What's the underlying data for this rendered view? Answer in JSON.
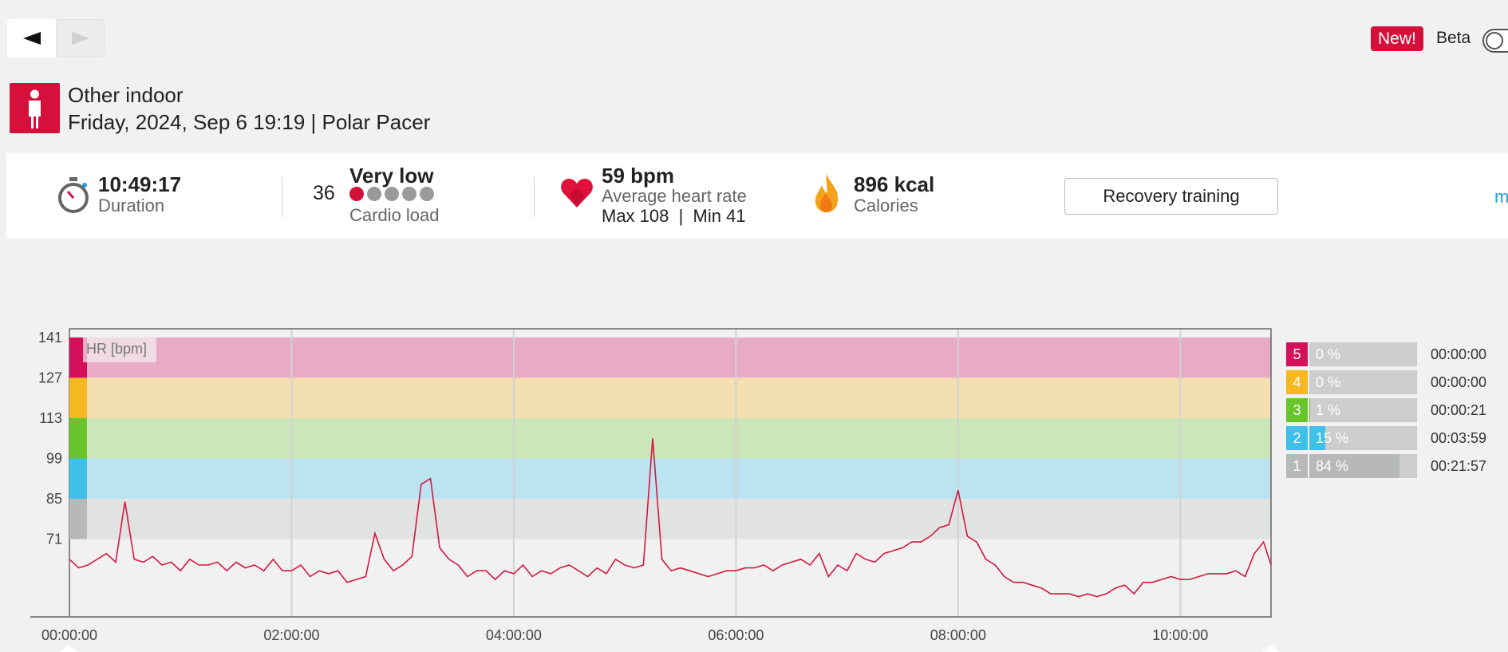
{
  "nav": {
    "back_icon": "triangle-left",
    "forward_icon": "triangle-right"
  },
  "beta": {
    "badge": "New!",
    "label": "Beta",
    "enabled": false
  },
  "header": {
    "sport_icon": "person-standing-icon",
    "sport_name": "Other indoor",
    "date_line": "Friday, 2024, Sep 6 19:19 | Polar Pacer"
  },
  "summary": {
    "duration_value": "10:49:17",
    "duration_label": "Duration",
    "cardio_value": "36",
    "cardio_level": "Very low",
    "cardio_label": "Cardio load",
    "cardio_dots_filled": 1,
    "cardio_dots_total": 5,
    "hr_value": "59 bpm",
    "hr_label": "Average heart rate",
    "hr_minmax": "Max 108  |  Min 41",
    "calories_value": "896 kcal",
    "calories_label": "Calories",
    "benefit_button": "Recovery training",
    "more_link": "mo"
  },
  "colors": {
    "brand_red": "#d5103a",
    "hr_line": "#d3173f",
    "zone5": "#e8aac5",
    "zone4": "#f4dfb0",
    "zone3": "#cbe6b8",
    "zone2": "#bce3f0",
    "zone1": "#e1e2e2",
    "zone5_swatch": "#d5105a",
    "zone4_swatch": "#f5b820",
    "zone3_swatch": "#67c42a",
    "zone2_swatch": "#3ec0e8",
    "zone1_swatch": "#b7b9b9"
  },
  "chart_data": {
    "type": "line",
    "ylabel": "HR [bpm]",
    "y_ticks": [
      "141",
      "127",
      "113",
      "99",
      "85",
      "71"
    ],
    "x_ticks": [
      "00:00:00",
      "02:00:00",
      "04:00:00",
      "06:00:00",
      "08:00:00",
      "10:00:00"
    ],
    "x_unit": "minutes",
    "series": [
      {
        "x": [
          0,
          5,
          10,
          15,
          20,
          25,
          30,
          35,
          40,
          45,
          50,
          55,
          60,
          65,
          70,
          75,
          80,
          85,
          90,
          95,
          100,
          105,
          110,
          115,
          120,
          125,
          130,
          135,
          140,
          145,
          150,
          155,
          160,
          165,
          170,
          175,
          180,
          185,
          190,
          195,
          200,
          205,
          210,
          215,
          220,
          225,
          230,
          235,
          240,
          245,
          250,
          255,
          260,
          265,
          270,
          275,
          280,
          285,
          290,
          295,
          300,
          305,
          310,
          315,
          320,
          325,
          330,
          335,
          340,
          345,
          350,
          355,
          360,
          365,
          370,
          375,
          380,
          385,
          390,
          395,
          400,
          405,
          410,
          415,
          420,
          425,
          430,
          435,
          440,
          445,
          450,
          455,
          460,
          465,
          470,
          475,
          480,
          485,
          490,
          495,
          500,
          505,
          510,
          515,
          520,
          525,
          530,
          535,
          540,
          545,
          550,
          555,
          560,
          565,
          570,
          575,
          580,
          585,
          590,
          595,
          600,
          605,
          610,
          615,
          620,
          625,
          630,
          635,
          640,
          645,
          649
        ],
        "y": [
          64,
          61,
          62,
          64,
          66,
          63,
          84,
          64,
          63,
          65,
          62,
          63,
          60,
          64,
          62,
          62,
          63,
          60,
          63,
          61,
          62,
          60,
          64,
          60,
          60,
          62,
          58,
          60,
          59,
          60,
          56,
          57,
          58,
          73,
          64,
          60,
          62,
          65,
          90,
          92,
          68,
          64,
          62,
          58,
          60,
          60,
          57,
          60,
          59,
          62,
          58,
          60,
          59,
          61,
          62,
          60,
          58,
          61,
          59,
          64,
          62,
          61,
          62,
          106,
          64,
          60,
          61,
          60,
          59,
          58,
          59,
          60,
          60,
          61,
          61,
          62,
          60,
          62,
          63,
          64,
          62,
          66,
          58,
          62,
          60,
          66,
          64,
          63,
          66,
          67,
          68,
          70,
          70,
          72,
          75,
          76,
          88,
          72,
          70,
          64,
          62,
          58,
          56,
          56,
          55,
          54,
          52,
          52,
          52,
          51,
          52,
          51,
          52,
          54,
          55,
          52,
          56,
          56,
          57,
          58,
          57,
          57,
          58,
          59,
          59,
          59,
          60,
          58,
          66,
          70,
          62
        ],
        "zones": [
          {
            "zone": "5",
            "percent": "0 %",
            "share": 0,
            "time": "00:00:00"
          },
          {
            "zone": "4",
            "percent": "0 %",
            "share": 0,
            "time": "00:00:00"
          },
          {
            "zone": "3",
            "percent": "1 %",
            "share": 0.01,
            "time": "00:00:21"
          },
          {
            "zone": "2",
            "percent": "15 %",
            "share": 0.15,
            "time": "00:03:59"
          },
          {
            "zone": "1",
            "percent": "84 %",
            "share": 0.84,
            "time": "00:21:57"
          }
        ]
      }
    ],
    "x_range": [
      0,
      649
    ],
    "y_range": [
      44,
      144
    ],
    "zone_bounds": [
      71,
      85,
      99,
      113,
      127,
      141
    ],
    "grid": true
  }
}
